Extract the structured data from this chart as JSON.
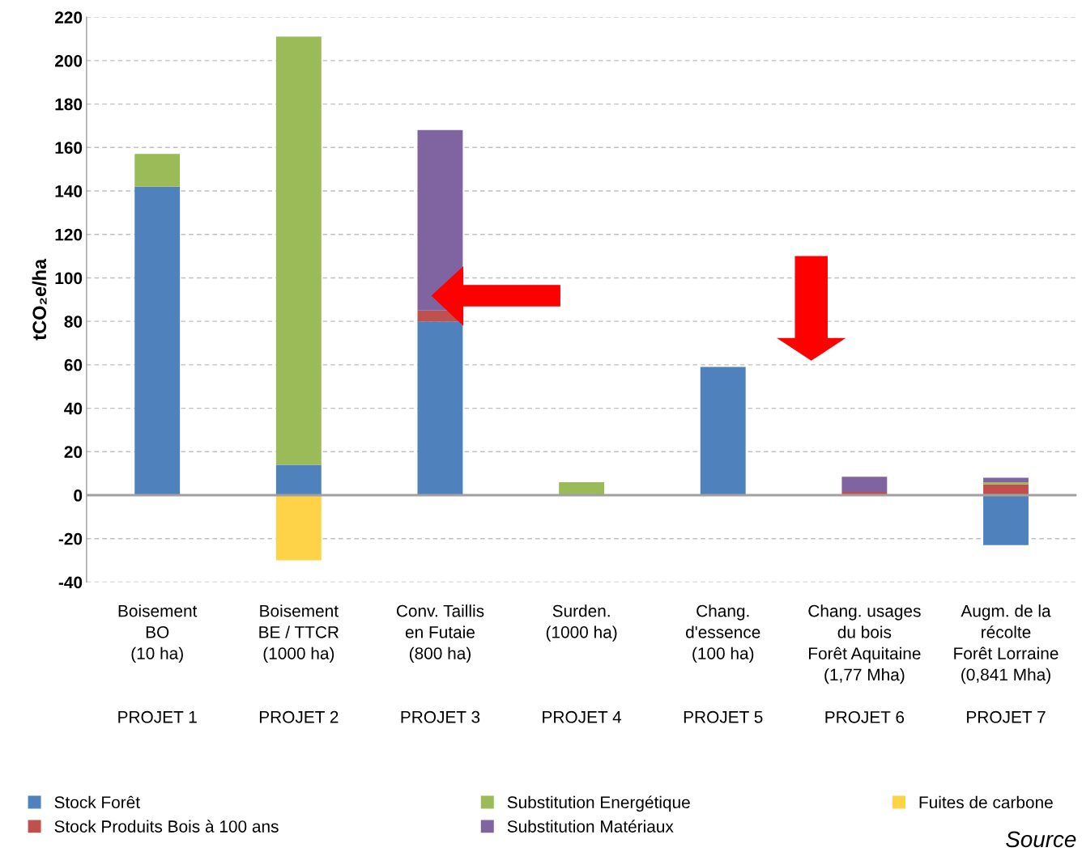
{
  "chart_data": {
    "type": "bar",
    "stacked": true,
    "ylabel": "tCO₂e/ha",
    "categories": [
      "Boisement\nBO\n(10 ha)\nPROJET 1",
      "Boisement\nBE / TTCR\n(1000 ha)\nPROJET 2",
      "Conv. Taillis\nen Futaie\n(800 ha)\nPROJET 3",
      "Surden.\n(1000 ha)\nPROJET 4",
      "Chang.\nd'essence\n(100 ha)\nPROJET 5",
      "Chang. usages\ndu bois\nForêt Aquitaine\n(1,77 Mha)\nPROJET 6",
      "Augm. de la\nrécolte\nForêt Lorraine\n(0,841 Mha)\nPROJET 7"
    ],
    "series": [
      {
        "name": "Stock Forêt",
        "color": "#4f81bd",
        "values": [
          142,
          14,
          80,
          null,
          59,
          null,
          -23
        ]
      },
      {
        "name": "Stock Produits Bois à 100 ans",
        "color": "#c0504d",
        "values": [
          null,
          null,
          5,
          null,
          null,
          1.5,
          5
        ]
      },
      {
        "name": "Substitution Energétique",
        "color": "#9bbb59",
        "values": [
          15,
          197,
          null,
          6,
          null,
          null,
          1
        ]
      },
      {
        "name": "Substitution Matériaux",
        "color": "#8064a2",
        "values": [
          null,
          null,
          83,
          null,
          null,
          7,
          2
        ]
      },
      {
        "name": "Fuites de carbone",
        "color": "#ffd347",
        "values": [
          null,
          -30,
          null,
          null,
          null,
          null,
          null
        ]
      }
    ],
    "ylim": [
      -40,
      220
    ],
    "yticks": [
      -40,
      -20,
      0,
      20,
      40,
      60,
      80,
      100,
      120,
      140,
      160,
      180,
      200,
      220
    ],
    "grid": "y",
    "legend": "bottom",
    "annotations": [
      "Source"
    ]
  }
}
